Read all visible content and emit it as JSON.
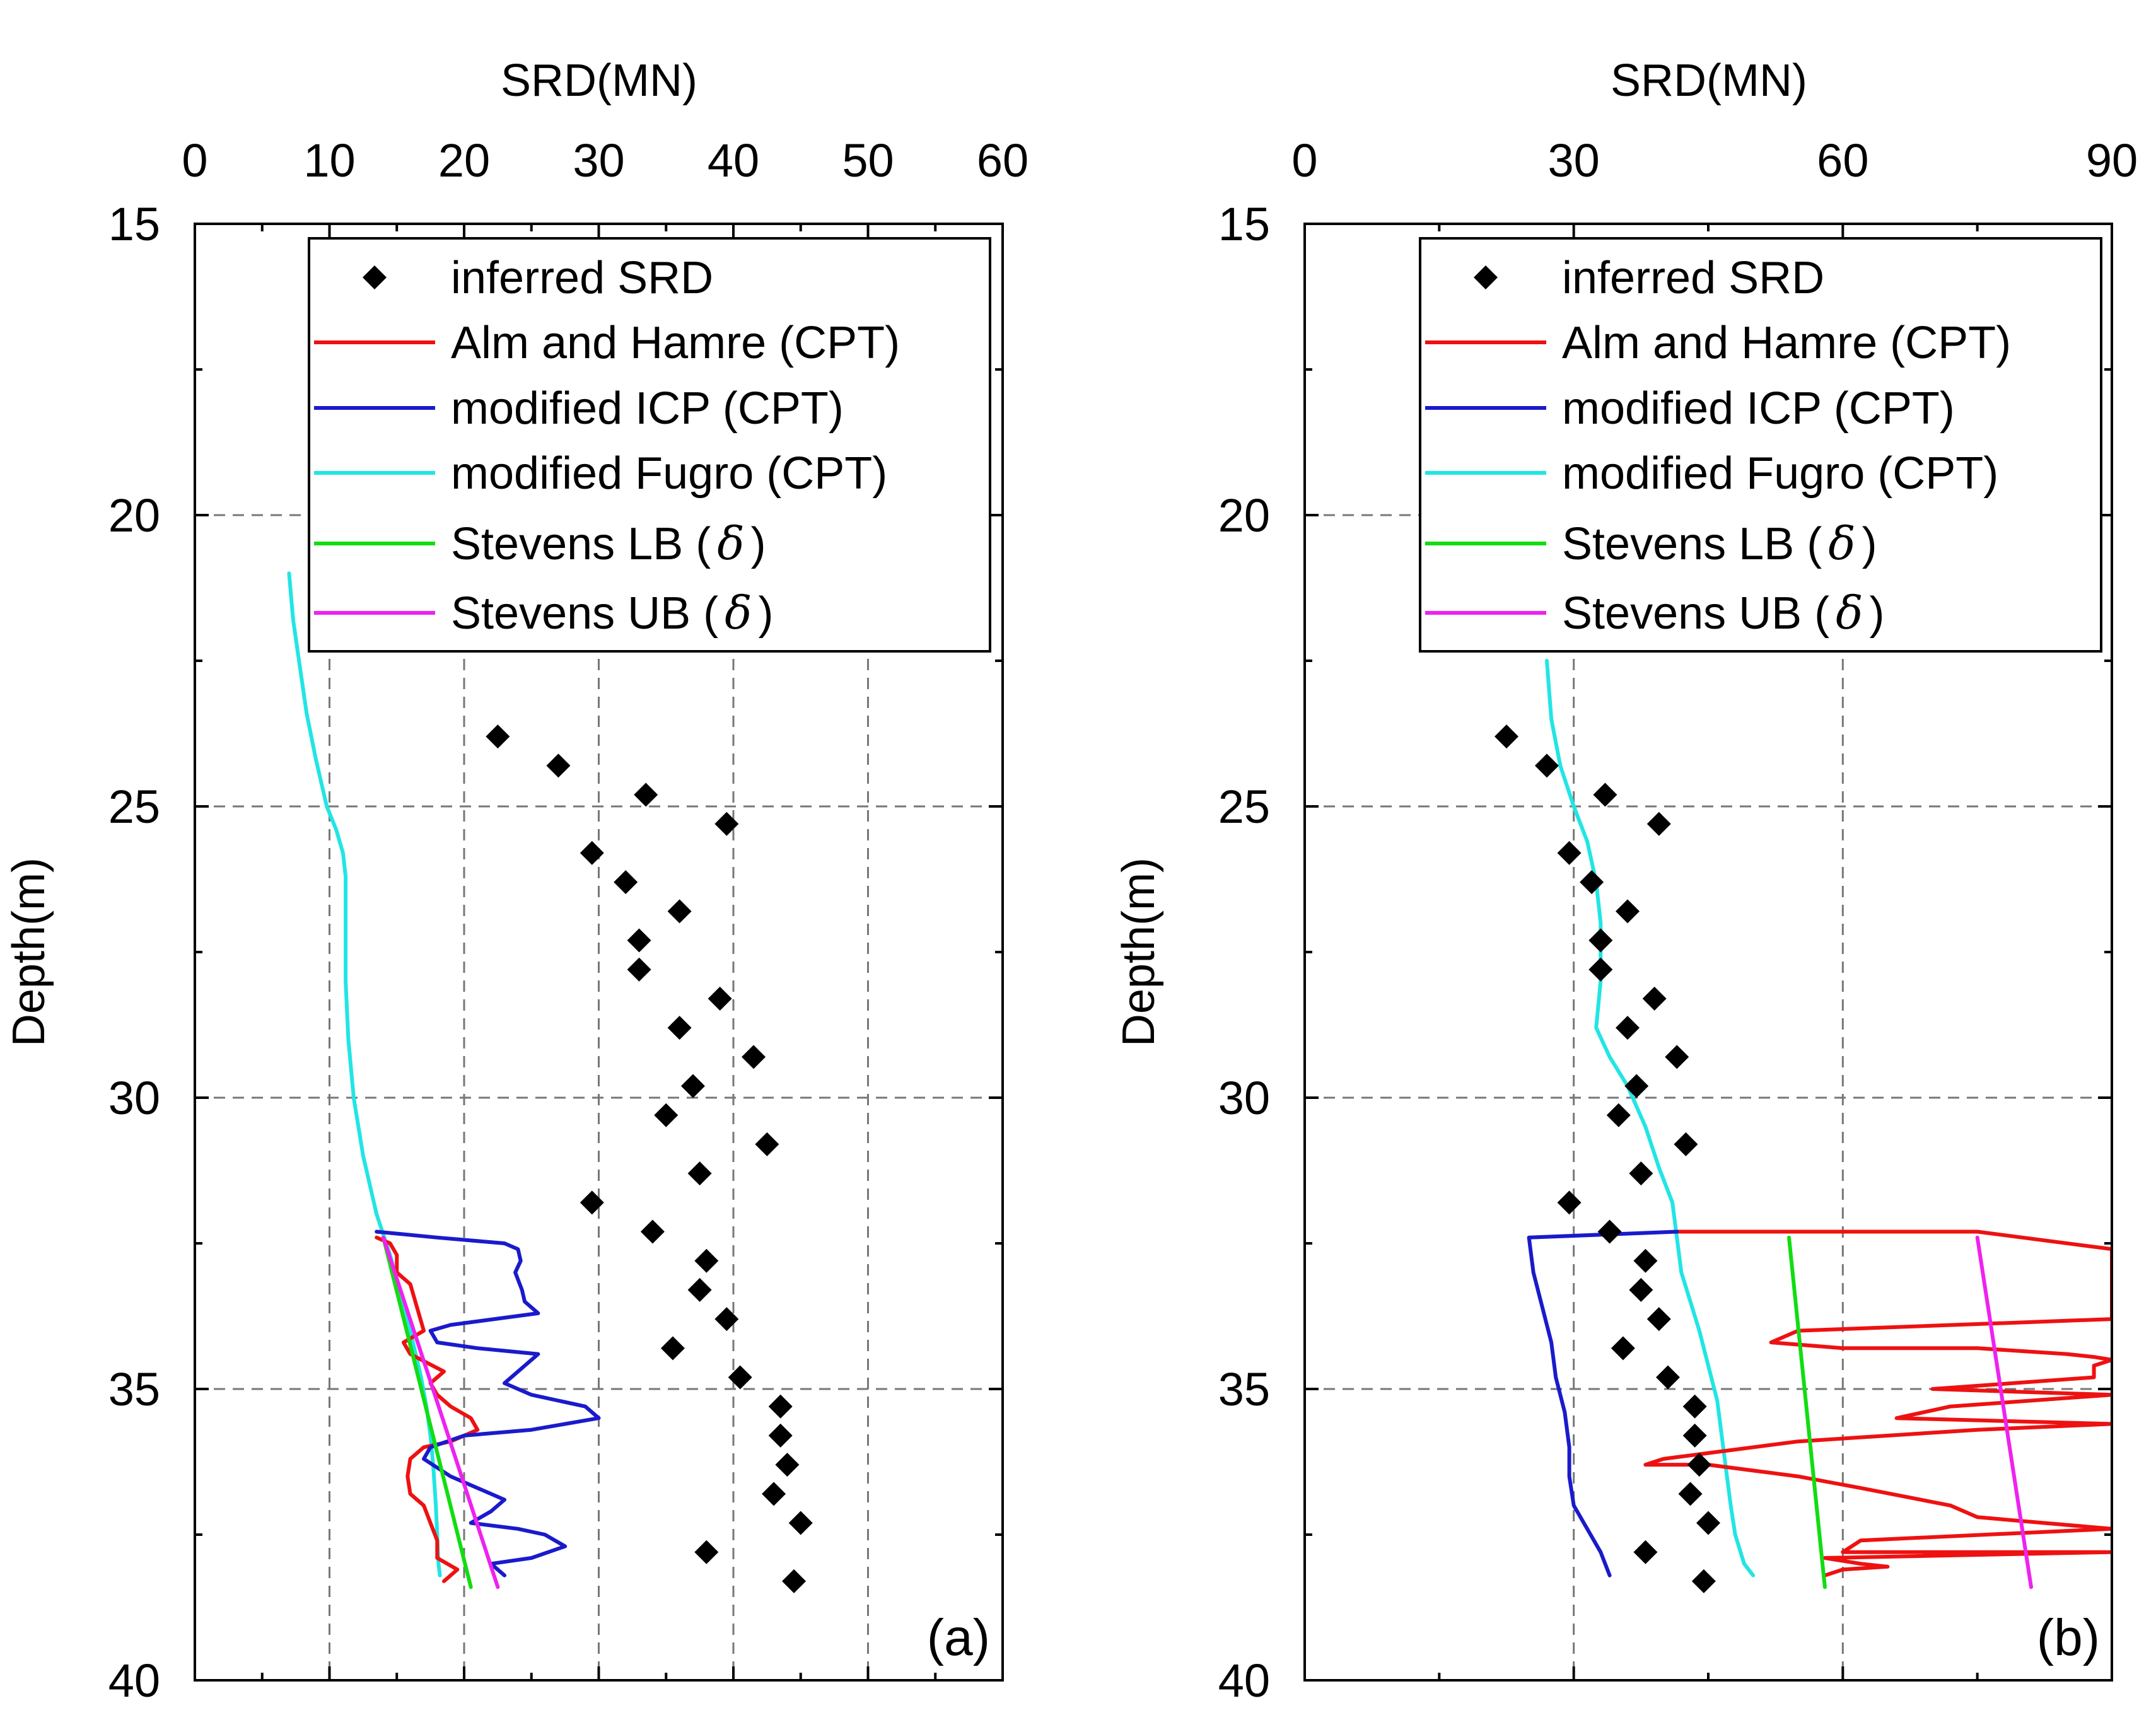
{
  "chart_data": [
    {
      "type": "line",
      "panel_label": "(a)",
      "xlabel": "SRD(MN)",
      "ylabel": "Depth(m)",
      "xlim": [
        0,
        60
      ],
      "ylim": [
        15,
        40
      ],
      "y_inverted": true,
      "x_axis_position": "top",
      "grid": true,
      "xticks": [
        0,
        10,
        20,
        30,
        40,
        50,
        60
      ],
      "yticks": [
        15,
        20,
        25,
        30,
        35,
        40
      ],
      "legend_position": "top-right",
      "legend": [
        {
          "label": "inferred SRD",
          "kind": "marker",
          "color": "#000000"
        },
        {
          "label": "Alm and Hamre (CPT)",
          "kind": "line",
          "color": "#ee1111"
        },
        {
          "label": "modified ICP (CPT)",
          "kind": "line",
          "color": "#1a1acc"
        },
        {
          "label": "modified Fugro (CPT)",
          "kind": "line",
          "color": "#22e5e5"
        },
        {
          "label_prefix": "Stevens LB (",
          "label_symbol": "δ",
          "label_suffix": ")",
          "kind": "line",
          "color": "#11dd11"
        },
        {
          "label_prefix": "Stevens UB (",
          "label_symbol": "δ",
          "label_suffix": ")",
          "kind": "line",
          "color": "#ee22ee"
        }
      ],
      "scatter": {
        "name": "inferred SRD",
        "points": [
          [
            22.5,
            23.8
          ],
          [
            27,
            24.3
          ],
          [
            33.5,
            24.8
          ],
          [
            39.5,
            25.3
          ],
          [
            29.5,
            25.8
          ],
          [
            32,
            26.3
          ],
          [
            36,
            26.8
          ],
          [
            33,
            27.3
          ],
          [
            33,
            27.8
          ],
          [
            39,
            28.3
          ],
          [
            36,
            28.8
          ],
          [
            41.5,
            29.3
          ],
          [
            37,
            29.8
          ],
          [
            35,
            30.3
          ],
          [
            42.5,
            30.8
          ],
          [
            37.5,
            31.3
          ],
          [
            29.5,
            31.8
          ],
          [
            34,
            32.3
          ],
          [
            38,
            32.8
          ],
          [
            37.5,
            33.3
          ],
          [
            39.5,
            33.8
          ],
          [
            35.5,
            34.3
          ],
          [
            40.5,
            34.8
          ],
          [
            43.5,
            35.3
          ],
          [
            43.5,
            35.8
          ],
          [
            44,
            36.3
          ],
          [
            43,
            36.8
          ],
          [
            45,
            37.3
          ],
          [
            38,
            37.8
          ],
          [
            44.5,
            38.3
          ]
        ]
      },
      "series": [
        {
          "name": "modified Fugro (CPT)",
          "color": "#22e5e5",
          "points": [
            [
              7,
              21
            ],
            [
              7.3,
              21.8
            ],
            [
              7.8,
              22.6
            ],
            [
              8.3,
              23.4
            ],
            [
              9,
              24.2
            ],
            [
              9.8,
              25
            ],
            [
              10.5,
              25.4
            ],
            [
              11,
              25.8
            ],
            [
              11.2,
              26.2
            ],
            [
              11.2,
              27
            ],
            [
              11.2,
              28
            ],
            [
              11.4,
              29
            ],
            [
              11.8,
              30
            ],
            [
              12.5,
              31
            ],
            [
              13.5,
              32
            ],
            [
              14.5,
              32.7
            ],
            [
              15.2,
              33.3
            ],
            [
              15.8,
              33.8
            ],
            [
              16.3,
              34.3
            ],
            [
              16.8,
              34.8
            ],
            [
              17.2,
              35.3
            ],
            [
              17.5,
              35.8
            ],
            [
              17.7,
              36.3
            ],
            [
              17.9,
              37
            ],
            [
              18,
              37.5
            ],
            [
              18.1,
              38
            ],
            [
              18.2,
              38.2
            ]
          ]
        },
        {
          "name": "Alm and Hamre (CPT)",
          "color": "#ee1111",
          "points": [
            [
              13.5,
              32.4
            ],
            [
              14.5,
              32.5
            ],
            [
              15,
              32.7
            ],
            [
              15,
              33.0
            ],
            [
              16,
              33.2
            ],
            [
              16.5,
              33.6
            ],
            [
              17,
              34.0
            ],
            [
              15.5,
              34.2
            ],
            [
              16,
              34.4
            ],
            [
              18.5,
              34.7
            ],
            [
              17.5,
              34.9
            ],
            [
              18,
              35.1
            ],
            [
              19,
              35.3
            ],
            [
              20.5,
              35.5
            ],
            [
              21,
              35.7
            ],
            [
              19,
              35.9
            ],
            [
              17,
              36.0
            ],
            [
              16,
              36.2
            ],
            [
              15.8,
              36.5
            ],
            [
              16,
              36.8
            ],
            [
              17,
              37.0
            ],
            [
              17.5,
              37.3
            ],
            [
              18,
              37.6
            ],
            [
              18,
              37.9
            ],
            [
              19.5,
              38.1
            ],
            [
              18.5,
              38.3
            ]
          ]
        },
        {
          "name": "modified ICP (CPT)",
          "color": "#1a1acc",
          "points": [
            [
              13.5,
              32.3
            ],
            [
              18,
              32.4
            ],
            [
              23,
              32.5
            ],
            [
              24,
              32.6
            ],
            [
              24.2,
              32.8
            ],
            [
              23.8,
              33.0
            ],
            [
              24.3,
              33.3
            ],
            [
              24.5,
              33.5
            ],
            [
              25.5,
              33.7
            ],
            [
              19,
              33.9
            ],
            [
              17.5,
              34.0
            ],
            [
              18,
              34.2
            ],
            [
              21,
              34.3
            ],
            [
              25.5,
              34.4
            ],
            [
              24,
              34.7
            ],
            [
              23,
              34.9
            ],
            [
              25,
              35.1
            ],
            [
              27,
              35.2
            ],
            [
              29,
              35.3
            ],
            [
              30,
              35.5
            ],
            [
              25,
              35.7
            ],
            [
              20,
              35.8
            ],
            [
              17.5,
              36.0
            ],
            [
              17,
              36.2
            ],
            [
              19,
              36.5
            ],
            [
              21,
              36.7
            ],
            [
              23,
              36.9
            ],
            [
              22,
              37.1
            ],
            [
              20.5,
              37.3
            ],
            [
              24,
              37.4
            ],
            [
              26,
              37.5
            ],
            [
              27.5,
              37.7
            ],
            [
              25,
              37.9
            ],
            [
              22,
              38.0
            ],
            [
              23,
              38.2
            ]
          ]
        },
        {
          "name": "Stevens LB (δ)",
          "color": "#11dd11",
          "points": [
            [
              14,
              32.4
            ],
            [
              20.5,
              38.4
            ]
          ]
        },
        {
          "name": "Stevens UB (δ)",
          "color": "#ee22ee",
          "points": [
            [
              14,
              32.4
            ],
            [
              22.5,
              38.4
            ]
          ]
        }
      ]
    },
    {
      "type": "line",
      "panel_label": "(b)",
      "xlabel": "SRD(MN)",
      "ylabel": "Depth(m)",
      "xlim": [
        0,
        90
      ],
      "ylim": [
        15,
        40
      ],
      "y_inverted": true,
      "x_axis_position": "top",
      "grid": true,
      "xticks": [
        0,
        30,
        60,
        90
      ],
      "yticks": [
        15,
        20,
        25,
        30,
        35,
        40
      ],
      "legend_position": "top-right",
      "legend": [
        {
          "label": "inferred SRD",
          "kind": "marker",
          "color": "#000000"
        },
        {
          "label": "Alm and Hamre (CPT)",
          "kind": "line",
          "color": "#ee1111"
        },
        {
          "label": "modified ICP (CPT)",
          "kind": "line",
          "color": "#1a1acc"
        },
        {
          "label": "modified Fugro (CPT)",
          "kind": "line",
          "color": "#22e5e5"
        },
        {
          "label_prefix": "Stevens LB (",
          "label_symbol": "δ",
          "label_suffix": ")",
          "kind": "line",
          "color": "#11dd11"
        },
        {
          "label_prefix": "Stevens UB (",
          "label_symbol": "δ",
          "label_suffix": ")",
          "kind": "line",
          "color": "#ee22ee"
        }
      ],
      "scatter": {
        "name": "inferred SRD",
        "points": [
          [
            22.5,
            23.8
          ],
          [
            27,
            24.3
          ],
          [
            33.5,
            24.8
          ],
          [
            39.5,
            25.3
          ],
          [
            29.5,
            25.8
          ],
          [
            32,
            26.3
          ],
          [
            36,
            26.8
          ],
          [
            33,
            27.3
          ],
          [
            33,
            27.8
          ],
          [
            39,
            28.3
          ],
          [
            36,
            28.8
          ],
          [
            41.5,
            29.3
          ],
          [
            37,
            29.8
          ],
          [
            35,
            30.3
          ],
          [
            42.5,
            30.8
          ],
          [
            37.5,
            31.3
          ],
          [
            29.5,
            31.8
          ],
          [
            34,
            32.3
          ],
          [
            38,
            32.8
          ],
          [
            37.5,
            33.3
          ],
          [
            39.5,
            33.8
          ],
          [
            35.5,
            34.3
          ],
          [
            40.5,
            34.8
          ],
          [
            43.5,
            35.3
          ],
          [
            43.5,
            35.8
          ],
          [
            44,
            36.3
          ],
          [
            43,
            36.8
          ],
          [
            45,
            37.3
          ],
          [
            38,
            37.8
          ],
          [
            44.5,
            38.3
          ]
        ]
      },
      "series": [
        {
          "name": "modified Fugro (CPT)",
          "color": "#22e5e5",
          "points": [
            [
              27,
              22.5
            ],
            [
              27.5,
              23.5
            ],
            [
              28.5,
              24.3
            ],
            [
              30,
              25
            ],
            [
              31.5,
              25.6
            ],
            [
              32.5,
              26.3
            ],
            [
              33,
              27
            ],
            [
              33,
              28
            ],
            [
              32.5,
              28.8
            ],
            [
              34,
              29.3
            ],
            [
              36,
              29.8
            ],
            [
              38,
              30.5
            ],
            [
              39.5,
              31.2
            ],
            [
              41,
              31.8
            ],
            [
              41.5,
              32.4
            ],
            [
              42,
              33
            ],
            [
              43,
              33.5
            ],
            [
              44,
              34
            ],
            [
              45,
              34.6
            ],
            [
              46,
              35.2
            ],
            [
              46.5,
              35.8
            ],
            [
              47,
              36.4
            ],
            [
              47.5,
              37
            ],
            [
              48,
              37.5
            ],
            [
              49,
              38
            ],
            [
              50,
              38.2
            ]
          ]
        },
        {
          "name": "Alm and Hamre (CPT)",
          "color": "#ee1111",
          "points": [
            [
              41.5,
              32.3
            ],
            [
              75,
              32.3
            ],
            [
              90,
              32.6
            ],
            [
              90,
              33.8
            ],
            [
              55,
              34.0
            ],
            [
              52,
              34.2
            ],
            [
              60,
              34.3
            ],
            [
              75,
              34.3
            ],
            [
              85,
              34.4
            ],
            [
              88,
              34.45
            ],
            [
              90,
              34.5
            ],
            [
              88,
              34.6
            ],
            [
              88,
              34.8
            ],
            [
              70,
              35.0
            ],
            [
              90,
              35.1
            ],
            [
              72,
              35.3
            ],
            [
              66,
              35.5
            ],
            [
              90,
              35.6
            ],
            [
              75,
              35.7
            ],
            [
              55,
              35.9
            ],
            [
              45,
              36.1
            ],
            [
              40,
              36.2
            ],
            [
              38,
              36.3
            ],
            [
              45,
              36.3
            ],
            [
              55,
              36.5
            ],
            [
              62,
              36.7
            ],
            [
              72,
              37.0
            ],
            [
              75,
              37.2
            ],
            [
              90,
              37.4
            ],
            [
              62,
              37.6
            ],
            [
              60,
              37.8
            ],
            [
              90,
              37.8
            ],
            [
              58,
              37.9
            ],
            [
              62,
              38.0
            ],
            [
              65,
              38.05
            ],
            [
              60,
              38.1
            ],
            [
              58,
              38.2
            ]
          ]
        },
        {
          "name": "modified ICP (CPT)",
          "color": "#1a1acc",
          "points": [
            [
              41.5,
              32.3
            ],
            [
              25,
              32.4
            ],
            [
              25.5,
              33
            ],
            [
              26.5,
              33.6
            ],
            [
              27.5,
              34.2
            ],
            [
              28,
              34.8
            ],
            [
              29,
              35.4
            ],
            [
              29.5,
              36
            ],
            [
              29.5,
              36.5
            ],
            [
              30,
              37
            ],
            [
              31.5,
              37.4
            ],
            [
              33,
              37.8
            ],
            [
              34,
              38.2
            ]
          ]
        },
        {
          "name": "Stevens LB (δ)",
          "color": "#11dd11",
          "points": [
            [
              54,
              32.4
            ],
            [
              58,
              38.4
            ]
          ]
        },
        {
          "name": "Stevens UB (δ)",
          "color": "#ee22ee",
          "points": [
            [
              75,
              32.4
            ],
            [
              81,
              38.4
            ]
          ]
        }
      ]
    }
  ]
}
